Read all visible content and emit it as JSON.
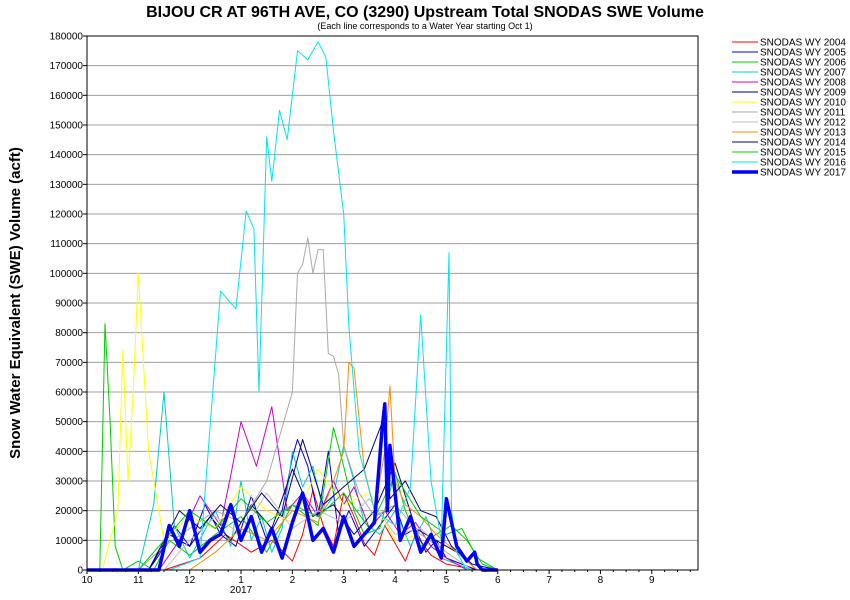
{
  "chart_data": {
    "type": "line",
    "title": "BIJOU CR AT 96TH AVE, CO (3290) Upstream Total SNODAS SWE Volume",
    "subtitle": "(Each line corresponds to a Water Year starting Oct 1)",
    "ylabel": "Snow Water Equivalent (SWE) Volume (acft)",
    "xlabel": "",
    "ylim": [
      0,
      180000
    ],
    "yticks": [
      0,
      10000,
      20000,
      30000,
      40000,
      50000,
      60000,
      70000,
      80000,
      90000,
      100000,
      110000,
      120000,
      130000,
      140000,
      150000,
      160000,
      170000,
      180000
    ],
    "x_axis_unit": "month",
    "xlim": [
      10,
      21.9
    ],
    "xticks": [
      {
        "x": 10,
        "label": "10"
      },
      {
        "x": 11,
        "label": "11"
      },
      {
        "x": 12,
        "label": "12"
      },
      {
        "x": 13,
        "label": "1"
      },
      {
        "x": 14,
        "label": "2"
      },
      {
        "x": 15,
        "label": "3"
      },
      {
        "x": 16,
        "label": "4"
      },
      {
        "x": 17,
        "label": "5"
      },
      {
        "x": 18,
        "label": "6"
      },
      {
        "x": 19,
        "label": "7"
      },
      {
        "x": 20,
        "label": "8"
      },
      {
        "x": 21,
        "label": "9"
      }
    ],
    "year_label": {
      "x": 13,
      "label": "2017"
    },
    "grid": true,
    "legend_position": "right",
    "series": [
      {
        "name": "SNODAS WY 2004",
        "color": "#ff0000",
        "width": 1,
        "x": [
          10,
          11.5,
          12.2,
          12.7,
          13.2,
          13.6,
          14,
          14.2,
          14.4,
          14.6,
          14.8,
          15,
          15.2,
          15.4,
          15.6,
          15.8,
          16,
          16.2,
          16.4,
          16.7,
          17,
          17.3,
          17.6,
          18
        ],
        "y": [
          0,
          0,
          4000,
          12000,
          6000,
          10000,
          3000,
          12000,
          27000,
          15000,
          8000,
          26000,
          18000,
          9000,
          5000,
          15000,
          9000,
          3000,
          12000,
          5000,
          2000,
          1000,
          0,
          0
        ]
      },
      {
        "name": "SNODAS WY 2005",
        "color": "#0000cc",
        "width": 1,
        "x": [
          10,
          11.2,
          11.4,
          11.7,
          12,
          12.3,
          12.6,
          12.9,
          13.2,
          13.5,
          13.8,
          14,
          14.1,
          14.3,
          14.5,
          14.7,
          14.9,
          15.1,
          15.4,
          15.7,
          16,
          16.2,
          16.4,
          16.6,
          16.8,
          17,
          17.3,
          17.6,
          18
        ],
        "y": [
          0,
          0,
          5000,
          15000,
          8000,
          22000,
          12000,
          8000,
          25000,
          10000,
          20000,
          38000,
          44000,
          35000,
          18000,
          40000,
          12000,
          20000,
          8000,
          15000,
          22000,
          12000,
          14000,
          6000,
          10000,
          4000,
          2000,
          0,
          0
        ]
      },
      {
        "name": "SNODAS WY 2006",
        "color": "#00cc00",
        "width": 1,
        "x": [
          10,
          10.25,
          10.35,
          10.45,
          10.55,
          10.7,
          11,
          11.3,
          11.6,
          12,
          12.5,
          13,
          13.5,
          14,
          14.5,
          14.8,
          15,
          15.2,
          15.4,
          15.7,
          16,
          16.2,
          16.5,
          16.8,
          17.1,
          17.4,
          17.7,
          18
        ],
        "y": [
          0,
          0,
          83000,
          50000,
          8000,
          0,
          3000,
          0,
          10000,
          5000,
          12000,
          18000,
          6000,
          22000,
          15000,
          48000,
          35000,
          20000,
          12000,
          14000,
          33000,
          20000,
          8000,
          12000,
          15000,
          10000,
          2000,
          0
        ]
      },
      {
        "name": "SNODAS WY 2007",
        "color": "#00cccc",
        "width": 1,
        "x": [
          10,
          11,
          11.3,
          11.5,
          11.7,
          12,
          12.5,
          12.8,
          13,
          13.2,
          13.4,
          13.6,
          13.8,
          14,
          14.2,
          14.4,
          14.6,
          14.8,
          15,
          15.2,
          15.4,
          15.7,
          16,
          16.3,
          16.6,
          16.9,
          17.2,
          17.5,
          18
        ],
        "y": [
          0,
          0,
          22000,
          60000,
          15000,
          4000,
          20000,
          8000,
          30000,
          10000,
          18000,
          6000,
          14000,
          40000,
          28000,
          35000,
          20000,
          25000,
          42000,
          30000,
          16000,
          12000,
          20000,
          8000,
          18000,
          4000,
          2000,
          0,
          0
        ]
      },
      {
        "name": "SNODAS WY 2008",
        "color": "#cc00cc",
        "width": 1,
        "x": [
          10,
          11.4,
          11.8,
          12.2,
          12.6,
          12.8,
          13,
          13.3,
          13.6,
          13.9,
          14.2,
          14.5,
          14.8,
          15,
          15.2,
          15.5,
          15.8,
          16.1,
          16.4,
          16.7,
          17,
          17.4,
          18
        ],
        "y": [
          0,
          0,
          10000,
          25000,
          15000,
          32000,
          50000,
          35000,
          55000,
          20000,
          26000,
          18000,
          30000,
          22000,
          28000,
          14000,
          20000,
          12000,
          16000,
          8000,
          4000,
          0,
          0
        ]
      },
      {
        "name": "SNODAS WY 2009",
        "color": "#000066",
        "width": 1,
        "x": [
          10,
          11.2,
          11.6,
          12,
          12.4,
          12.8,
          13.2,
          13.6,
          14,
          14.4,
          14.8,
          15.2,
          15.6,
          16,
          16.4,
          16.8,
          17.2,
          17.6,
          18
        ],
        "y": [
          0,
          0,
          12000,
          8000,
          18000,
          10000,
          22000,
          14000,
          34000,
          18000,
          22000,
          12000,
          20000,
          36000,
          14000,
          10000,
          6000,
          0,
          0
        ]
      },
      {
        "name": "SNODAS WY 2010",
        "color": "#ffff00",
        "width": 1,
        "x": [
          10,
          10.3,
          10.6,
          10.7,
          10.8,
          10.9,
          11,
          11.2,
          11.5,
          12,
          12.5,
          13,
          13.5,
          14,
          14.5,
          15,
          15.5,
          16,
          16.5,
          17,
          17.5,
          18
        ],
        "y": [
          0,
          0,
          20000,
          74000,
          30000,
          60000,
          100000,
          40000,
          10000,
          18000,
          14000,
          28000,
          20000,
          16000,
          34000,
          22000,
          26000,
          10000,
          12000,
          6000,
          0,
          0
        ]
      },
      {
        "name": "SNODAS WY 2011",
        "color": "#a9a9a9",
        "width": 1,
        "x": [
          10,
          11,
          11.5,
          12,
          12.5,
          13,
          13.5,
          14,
          14.1,
          14.2,
          14.3,
          14.4,
          14.5,
          14.6,
          14.7,
          14.8,
          14.9,
          15,
          15.3,
          15.6,
          16,
          16.5,
          17,
          17.5,
          18
        ],
        "y": [
          0,
          0,
          8000,
          14000,
          20000,
          16000,
          30000,
          60000,
          100000,
          103000,
          112000,
          100000,
          108000,
          108000,
          73000,
          72000,
          66000,
          42000,
          26000,
          18000,
          22000,
          12000,
          6000,
          0,
          0
        ]
      },
      {
        "name": "SNODAS WY 2012",
        "color": "#c0c0c0",
        "width": 1,
        "x": [
          10,
          11.5,
          12,
          12.5,
          13,
          13.5,
          14,
          14.5,
          15,
          15.5,
          16,
          16.5,
          17,
          17.5,
          18
        ],
        "y": [
          0,
          0,
          10000,
          18000,
          12000,
          26000,
          14000,
          20000,
          16000,
          24000,
          12000,
          14000,
          6000,
          0,
          0
        ]
      },
      {
        "name": "SNODAS WY 2013",
        "color": "#ff8c00",
        "width": 1,
        "x": [
          10,
          12,
          12.5,
          13,
          13.5,
          14,
          14.5,
          14.8,
          15,
          15.1,
          15.2,
          15.4,
          15.6,
          15.8,
          15.9,
          16,
          16.2,
          16.5,
          16.8,
          17.2,
          17.6,
          18
        ],
        "y": [
          0,
          0,
          6000,
          14000,
          10000,
          20000,
          16000,
          30000,
          40000,
          70000,
          68000,
          34000,
          20000,
          40000,
          62000,
          30000,
          22000,
          18000,
          12000,
          6000,
          0,
          0
        ]
      },
      {
        "name": "SNODAS WY 2014",
        "color": "#000080",
        "width": 1,
        "x": [
          10,
          11.2,
          11.5,
          11.8,
          12.2,
          12.6,
          13,
          13.4,
          13.8,
          14.2,
          14.6,
          15,
          15.4,
          15.8,
          15.85,
          15.9,
          16.2,
          16.5,
          16.8,
          17.1,
          17.5,
          18
        ],
        "y": [
          0,
          0,
          10000,
          20000,
          14000,
          22000,
          16000,
          26000,
          18000,
          44000,
          22000,
          28000,
          34000,
          52000,
          40000,
          24000,
          30000,
          20000,
          18000,
          8000,
          2000,
          0
        ]
      },
      {
        "name": "SNODAS WY 2015",
        "color": "#00cc00",
        "width": 1,
        "x": [
          10,
          11,
          11.5,
          12,
          12.5,
          13,
          13.5,
          14,
          14.5,
          15,
          15.5,
          16,
          16.5,
          17,
          17.3,
          17.6,
          18
        ],
        "y": [
          0,
          0,
          10000,
          20000,
          14000,
          24000,
          16000,
          22000,
          18000,
          26000,
          14000,
          32000,
          18000,
          12000,
          14000,
          4000,
          0
        ]
      },
      {
        "name": "SNODAS WY 2016",
        "color": "#00e5ee",
        "width": 1,
        "x": [
          10,
          11.6,
          12.2,
          12.6,
          12.9,
          13.1,
          13.25,
          13.35,
          13.5,
          13.6,
          13.75,
          13.9,
          14.1,
          14.3,
          14.5,
          14.65,
          14.8,
          15,
          15.1,
          15.3,
          15.6,
          16,
          16.3,
          16.5,
          16.7,
          16.9,
          17.05,
          17.1,
          17.2,
          17.4,
          18
        ],
        "y": [
          0,
          0,
          4000,
          94000,
          88000,
          121000,
          115000,
          60000,
          146000,
          131000,
          155000,
          145000,
          175000,
          172000,
          178000,
          173000,
          148000,
          120000,
          82000,
          40000,
          20000,
          15000,
          28000,
          86000,
          30000,
          10000,
          107000,
          20000,
          6000,
          0,
          0
        ]
      },
      {
        "name": "SNODAS WY 2017",
        "color": "#0000ff",
        "width": 3.5,
        "x": [
          10,
          11.4,
          11.6,
          11.8,
          12,
          12.2,
          12.4,
          12.6,
          12.8,
          13,
          13.2,
          13.4,
          13.6,
          13.8,
          14,
          14.2,
          14.4,
          14.6,
          14.8,
          15,
          15.2,
          15.4,
          15.6,
          15.75,
          15.8,
          15.85,
          15.9,
          16.1,
          16.3,
          16.5,
          16.7,
          16.9,
          17,
          17.2,
          17.4,
          17.55,
          17.6,
          17.7,
          18
        ],
        "y": [
          0,
          0,
          15000,
          8000,
          20000,
          6000,
          10000,
          12000,
          22000,
          10000,
          18000,
          6000,
          14000,
          4000,
          16000,
          26000,
          10000,
          14000,
          6000,
          18000,
          8000,
          12000,
          16000,
          48000,
          56000,
          20000,
          42000,
          10000,
          18000,
          6000,
          12000,
          4000,
          24000,
          8000,
          3000,
          6000,
          2000,
          0,
          0
        ]
      }
    ]
  }
}
